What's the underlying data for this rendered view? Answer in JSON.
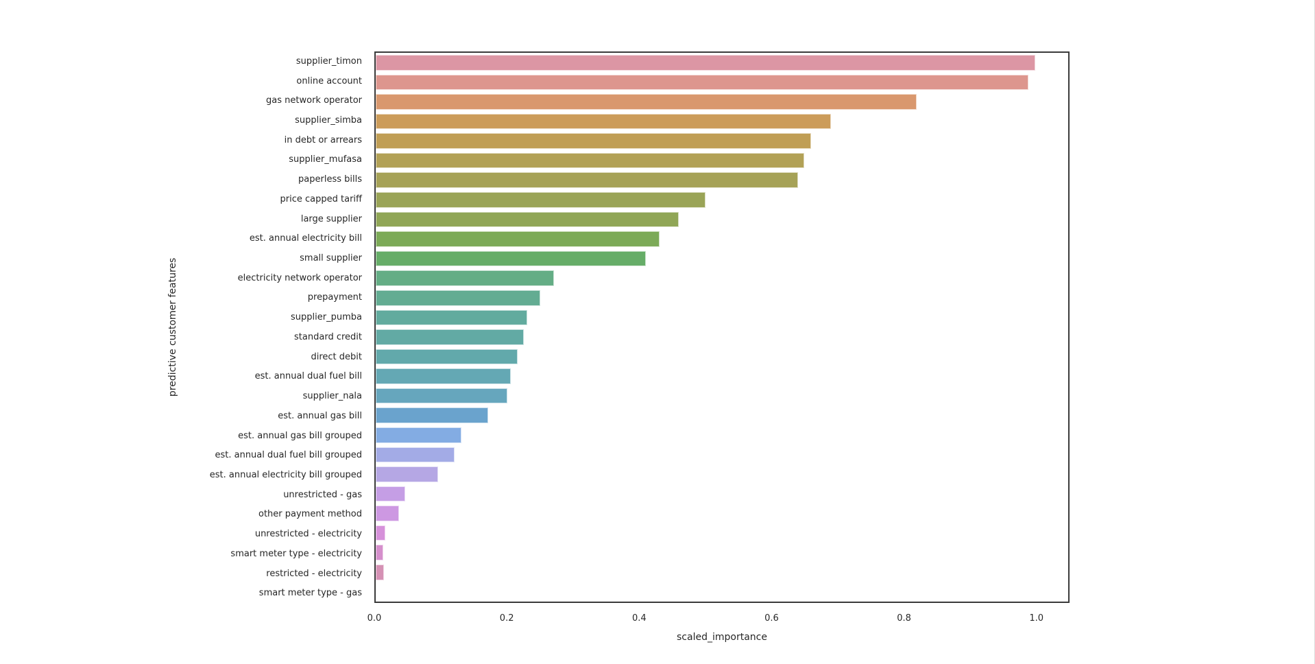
{
  "figure": {
    "background_color": "#ffffff",
    "spine_color": "#3a3a3a",
    "text_color": "#262626"
  },
  "chart_data": {
    "type": "bar",
    "orientation": "horizontal",
    "title": "",
    "xlabel": "scaled_importance",
    "ylabel": "predictive customer features",
    "xlim": [
      0,
      1.05
    ],
    "x_ticks": [
      0.0,
      0.2,
      0.4,
      0.6,
      0.8,
      1.0
    ],
    "x_tick_labels": [
      "0.0",
      "0.2",
      "0.4",
      "0.6",
      "0.8",
      "1.0"
    ],
    "grid": false,
    "legend": false,
    "categories": [
      "supplier_timon",
      "online account",
      "gas network operator",
      "supplier_simba",
      "in debt or arrears",
      "supplier_mufasa",
      "paperless bills",
      "price capped tariff",
      "large supplier",
      "est. annual electricity bill",
      "small supplier",
      "electricity network operator",
      "prepayment",
      "supplier_pumba",
      "standard credit",
      "direct debit",
      "est. annual dual fuel bill",
      "supplier_nala",
      "est. annual gas bill",
      "est. annual gas bill grouped",
      "est. annual dual fuel bill grouped",
      "est. annual electricity bill grouped",
      "unrestricted - gas",
      "other payment method",
      "unrestricted - electricity",
      "smart meter type - electricity",
      "restricted - electricity",
      "smart meter type - gas"
    ],
    "values": [
      1.0,
      0.99,
      0.82,
      0.69,
      0.66,
      0.65,
      0.64,
      0.5,
      0.46,
      0.43,
      0.41,
      0.27,
      0.25,
      0.23,
      0.225,
      0.215,
      0.205,
      0.2,
      0.17,
      0.13,
      0.12,
      0.095,
      0.045,
      0.035,
      0.015,
      0.011,
      0.012,
      0.0
    ],
    "bar_colors": [
      "#dc96a4",
      "#dd968e",
      "#d9986e",
      "#cc9c5a",
      "#c09e55",
      "#b2a156",
      "#a6a257",
      "#9aa457",
      "#90a656",
      "#7caa57",
      "#66ad68",
      "#64ad85",
      "#63ac92",
      "#62ab9e",
      "#62aaa4",
      "#62a9ab",
      "#64a8b4",
      "#66a6bd",
      "#6aa3cd",
      "#83ace3",
      "#a3abe6",
      "#b5a7e4",
      "#c59ee5",
      "#cd98e2",
      "#d691da",
      "#d58fcc",
      "#d591b4",
      "#dc92a2"
    ]
  }
}
